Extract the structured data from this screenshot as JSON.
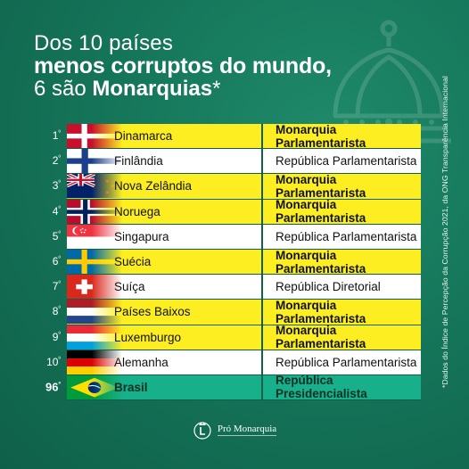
{
  "headline": {
    "line1": "Dos 10 países",
    "line2": "menos corruptos do mundo,",
    "line3_prefix": "6 são ",
    "line3_bold": "Monarquias",
    "line3_suffix": "*"
  },
  "rows": [
    {
      "rank": "1",
      "flag": "flag-denmark-icon",
      "country": "Dinamarca",
      "government": "Monarquia Parlamentarista",
      "type": "monarchy"
    },
    {
      "rank": "2",
      "flag": "flag-finland-icon",
      "country": "Finlândia",
      "government": "República Parlamentarista",
      "type": "republic"
    },
    {
      "rank": "3",
      "flag": "flag-new-zealand-icon",
      "country": "Nova Zelândia",
      "government": "Monarquia Parlamentarista",
      "type": "monarchy"
    },
    {
      "rank": "4",
      "flag": "flag-norway-icon",
      "country": "Noruega",
      "government": "Monarquia Parlamentarista",
      "type": "monarchy"
    },
    {
      "rank": "5",
      "flag": "flag-singapore-icon",
      "country": "Singapura",
      "government": "República Parlamentarista",
      "type": "republic"
    },
    {
      "rank": "6",
      "flag": "flag-sweden-icon",
      "country": "Suécia",
      "government": "Monarquia Parlamentarista",
      "type": "monarchy"
    },
    {
      "rank": "7",
      "flag": "flag-switzerland-icon",
      "country": "Suíça",
      "government": "República Diretorial",
      "type": "republic"
    },
    {
      "rank": "8",
      "flag": "flag-netherlands-icon",
      "country": "Países Baixos",
      "government": "Monarquia Parlamentarista",
      "type": "monarchy"
    },
    {
      "rank": "9",
      "flag": "flag-luxembourg-icon",
      "country": "Luxemburgo",
      "government": "Monarquia Parlamentarista",
      "type": "monarchy"
    },
    {
      "rank": "10",
      "flag": "flag-germany-icon",
      "country": "Alemanha",
      "government": "República Parlamentarista",
      "type": "republic"
    },
    {
      "rank": "96",
      "flag": "flag-brazil-icon",
      "country": "Brasil",
      "government": "República Presidencialista",
      "type": "brazil"
    }
  ],
  "rank_suffix": "º",
  "side_note": "*Dados do Índice de Percepção da Corrupção 2021, da ONG Transparência Internacional",
  "footer": {
    "brand": "Pró Monarquia"
  },
  "colors": {
    "background": "#15765a",
    "monarchy_row": "#fcee21",
    "republic_row": "#ffffff",
    "brazil_row": "#17b08a"
  }
}
